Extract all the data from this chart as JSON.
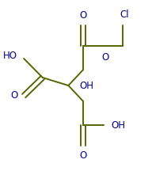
{
  "bg_color": "#ffffff",
  "bond_color": "#556600",
  "text_color": "#00008B",
  "line_width": 1.4,
  "figsize": [
    1.92,
    2.16
  ],
  "dpi": 100,
  "xlim": [
    0,
    192
  ],
  "ylim": [
    0,
    216
  ]
}
